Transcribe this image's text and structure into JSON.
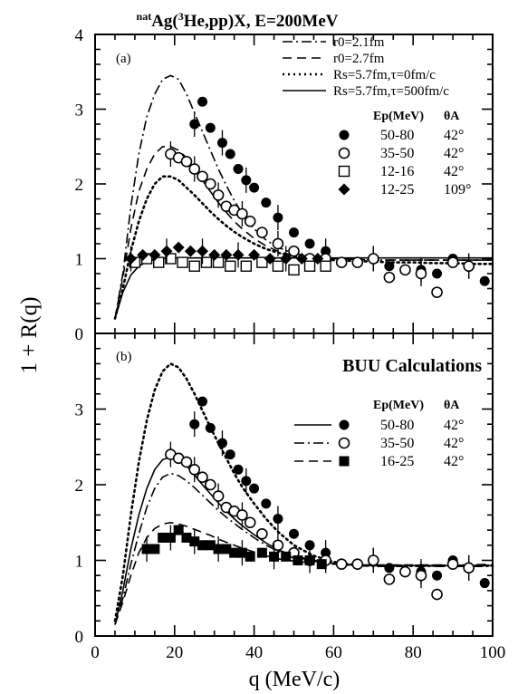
{
  "figure": {
    "title_prefix": "nat",
    "title_main": "Ag(",
    "title_super": "3",
    "title_rest": "He,pp)X, E=200MeV",
    "ylabel": "1 + R(q)",
    "xlabel": "q (MeV/c)",
    "x_ticks": [
      "0",
      "20",
      "40",
      "60",
      "80",
      "100"
    ],
    "y_ticks_a": [
      "0",
      "1",
      "2",
      "3",
      "4"
    ],
    "y_ticks_b": [
      "0",
      "1",
      "2",
      "3"
    ]
  },
  "chart_data": [
    {
      "type": "line",
      "panel": "(a)",
      "xlim": [
        0,
        100
      ],
      "ylim": [
        0,
        4
      ],
      "title": "",
      "curves": [
        {
          "name": "r0=2.1fm",
          "style": "dash-dot",
          "x": [
            5,
            7,
            9,
            11,
            13,
            15,
            17,
            19,
            21,
            23,
            25,
            27,
            29,
            31,
            33,
            35,
            37,
            40,
            43,
            46,
            50,
            55,
            60,
            65,
            70,
            75,
            80,
            85,
            90,
            95,
            100
          ],
          "y": [
            0.2,
            0.8,
            1.7,
            2.4,
            2.9,
            3.2,
            3.4,
            3.45,
            3.4,
            3.2,
            2.95,
            2.7,
            2.45,
            2.2,
            1.98,
            1.78,
            1.6,
            1.4,
            1.25,
            1.15,
            1.07,
            1.02,
            1.0,
            0.99,
            0.98,
            0.98,
            0.98,
            0.98,
            0.98,
            0.98,
            0.98
          ]
        },
        {
          "name": "r0=2.7fm",
          "style": "dashed",
          "x": [
            5,
            7,
            9,
            11,
            13,
            15,
            17,
            19,
            21,
            23,
            25,
            27,
            29,
            31,
            33,
            35,
            37,
            40,
            43,
            46,
            50,
            55,
            60,
            65,
            70,
            75,
            80,
            85,
            90,
            95,
            100
          ],
          "y": [
            0.2,
            0.75,
            1.4,
            1.9,
            2.2,
            2.4,
            2.5,
            2.5,
            2.45,
            2.35,
            2.2,
            2.05,
            1.9,
            1.75,
            1.62,
            1.5,
            1.4,
            1.27,
            1.17,
            1.1,
            1.04,
            1.01,
            1.0,
            0.99,
            0.98,
            0.98,
            0.98,
            0.98,
            0.98,
            0.98,
            0.98
          ]
        },
        {
          "name": "Rs=5.7fm,τ=0fm/c",
          "style": "dotted",
          "x": [
            5,
            7,
            9,
            11,
            13,
            15,
            17,
            19,
            21,
            23,
            25,
            27,
            29,
            31,
            33,
            35,
            37,
            40,
            43,
            46,
            50,
            55,
            60,
            65,
            70,
            75,
            80,
            85,
            90,
            95,
            100
          ],
          "y": [
            0.2,
            0.6,
            1.1,
            1.5,
            1.8,
            2.0,
            2.1,
            2.1,
            2.05,
            1.95,
            1.85,
            1.74,
            1.63,
            1.53,
            1.44,
            1.36,
            1.29,
            1.2,
            1.13,
            1.08,
            1.03,
            1.0,
            0.98,
            0.97,
            0.96,
            0.95,
            0.95,
            0.94,
            0.94,
            0.93,
            0.93
          ]
        },
        {
          "name": "Rs=5.7fm,τ=500fm/c",
          "style": "solid",
          "x": [
            5,
            7,
            9,
            11,
            13,
            15,
            17,
            19,
            21,
            23,
            25,
            27,
            29,
            31,
            33,
            35,
            37,
            40,
            43,
            46,
            50,
            55,
            60,
            65,
            70,
            75,
            80,
            85,
            90,
            95,
            100
          ],
          "y": [
            0.2,
            0.55,
            0.78,
            0.9,
            0.96,
            0.99,
            1.0,
            1.01,
            1.01,
            1.01,
            1.01,
            1.01,
            1.01,
            1.01,
            1.01,
            1.01,
            1.01,
            1.01,
            1.01,
            1.01,
            1.01,
            1.01,
            1.01,
            1.01,
            1.01,
            1.01,
            1.01,
            1.01,
            1.01,
            1.01,
            1.01
          ]
        }
      ],
      "legend_header": {
        "col1": "Ep(MeV)",
        "col2": "θA"
      },
      "series": [
        {
          "name": "50-80",
          "angle": "42°",
          "marker": "filled-circle",
          "x": [
            25,
            27,
            29,
            32,
            34,
            36,
            38,
            40,
            43,
            46,
            50,
            54,
            58,
            62,
            66,
            70,
            74,
            78,
            82,
            86,
            90,
            94,
            98
          ],
          "y": [
            2.8,
            3.1,
            2.75,
            2.55,
            2.4,
            2.2,
            2.05,
            1.95,
            1.75,
            1.55,
            1.35,
            1.2,
            1.1,
            0.95,
            0.95,
            1.0,
            0.9,
            0.85,
            0.85,
            0.8,
            1.0,
            0.9,
            0.7
          ]
        },
        {
          "name": "35-50",
          "angle": "42°",
          "marker": "open-circle",
          "x": [
            19,
            21,
            23,
            25,
            27,
            29,
            31,
            33,
            35,
            37,
            39,
            42,
            46,
            50,
            54,
            58,
            62,
            66,
            70,
            74,
            78,
            82,
            86,
            90,
            94
          ],
          "y": [
            2.4,
            2.35,
            2.3,
            2.2,
            2.1,
            2.0,
            1.85,
            1.7,
            1.65,
            1.6,
            1.5,
            1.35,
            1.2,
            1.1,
            1.0,
            1.0,
            0.95,
            0.95,
            1.0,
            0.75,
            0.85,
            0.8,
            0.55,
            0.95,
            0.9
          ]
        },
        {
          "name": "12-16",
          "angle": "42°",
          "marker": "open-square",
          "x": [
            10,
            13,
            16,
            19,
            22,
            25,
            28,
            31,
            34,
            38,
            42,
            46,
            50,
            54,
            58
          ],
          "y": [
            0.95,
            1.0,
            0.95,
            1.0,
            0.95,
            0.9,
            0.95,
            0.95,
            0.9,
            0.9,
            0.95,
            0.9,
            0.85,
            0.9,
            0.9
          ]
        },
        {
          "name": "12-25",
          "angle": "109°",
          "marker": "filled-diamond",
          "x": [
            9,
            12,
            15,
            18,
            21,
            24,
            27,
            30,
            33,
            36,
            40,
            44,
            48,
            52,
            56
          ],
          "y": [
            1.0,
            1.05,
            1.05,
            1.1,
            1.15,
            1.1,
            1.1,
            1.05,
            1.05,
            1.05,
            1.05,
            1.0,
            1.0,
            1.0,
            1.0
          ]
        }
      ]
    },
    {
      "type": "line",
      "panel": "(b)",
      "title": "BUU Calculations",
      "xlim": [
        0,
        100
      ],
      "ylim": [
        0,
        4
      ],
      "curves": [
        {
          "name": "dotted",
          "style": "dotted",
          "x": [
            5,
            7,
            9,
            11,
            13,
            15,
            17,
            19,
            21,
            23,
            25,
            27,
            29,
            31,
            33,
            35,
            37,
            40,
            43,
            46,
            50,
            55,
            60,
            65,
            70,
            75,
            80,
            85,
            90,
            95,
            100
          ],
          "y": [
            0.2,
            0.8,
            1.6,
            2.3,
            2.85,
            3.25,
            3.5,
            3.6,
            3.55,
            3.4,
            3.2,
            2.98,
            2.76,
            2.55,
            2.35,
            2.15,
            1.97,
            1.75,
            1.55,
            1.38,
            1.2,
            1.06,
            0.98,
            0.94,
            0.93,
            0.93,
            0.93,
            0.93,
            0.93,
            0.93,
            0.93
          ]
        },
        {
          "name": "solid",
          "style": "solid",
          "x": [
            5,
            7,
            9,
            11,
            13,
            15,
            17,
            19,
            21,
            23,
            25,
            27,
            29,
            31,
            33,
            35,
            37,
            40,
            43,
            46,
            50,
            55,
            60,
            65,
            70,
            75,
            80,
            85,
            90,
            95,
            100
          ],
          "y": [
            0.15,
            0.6,
            1.15,
            1.6,
            1.95,
            2.2,
            2.33,
            2.37,
            2.33,
            2.25,
            2.13,
            2.0,
            1.88,
            1.76,
            1.65,
            1.55,
            1.46,
            1.34,
            1.23,
            1.14,
            1.06,
            1.0,
            0.96,
            0.94,
            0.93,
            0.93,
            0.93,
            0.93,
            0.93,
            0.93,
            0.93
          ]
        },
        {
          "name": "dash-dot",
          "style": "dash-dot",
          "x": [
            5,
            7,
            9,
            11,
            13,
            15,
            17,
            19,
            21,
            23,
            25,
            27,
            29,
            31,
            33,
            35,
            37,
            40,
            43,
            46,
            50,
            55,
            60,
            65,
            70,
            75,
            80,
            85,
            90,
            95,
            100
          ],
          "y": [
            0.15,
            0.5,
            0.95,
            1.35,
            1.7,
            1.95,
            2.1,
            2.15,
            2.12,
            2.05,
            1.96,
            1.86,
            1.76,
            1.66,
            1.57,
            1.49,
            1.41,
            1.3,
            1.2,
            1.12,
            1.05,
            0.99,
            0.95,
            0.93,
            0.92,
            0.92,
            0.92,
            0.92,
            0.92,
            0.92,
            0.92
          ]
        },
        {
          "name": "dashed",
          "style": "dashed",
          "x": [
            5,
            7,
            9,
            11,
            13,
            15,
            17,
            19,
            21,
            23,
            25,
            27,
            29,
            31,
            33,
            35,
            37,
            40,
            43,
            46,
            50,
            55,
            60,
            65,
            70,
            75,
            80,
            85,
            90,
            95,
            100
          ],
          "y": [
            0.15,
            0.45,
            0.8,
            1.1,
            1.3,
            1.42,
            1.48,
            1.5,
            1.48,
            1.45,
            1.41,
            1.37,
            1.33,
            1.28,
            1.24,
            1.2,
            1.16,
            1.11,
            1.06,
            1.02,
            0.99,
            0.96,
            0.95,
            0.94,
            0.94,
            0.94,
            0.94,
            0.94,
            0.94,
            0.94,
            0.95
          ]
        }
      ],
      "legend_header": {
        "col1": "Ep(MeV)",
        "col2": "θA"
      },
      "series": [
        {
          "name": "50-80",
          "angle": "42°",
          "marker": "filled-circle",
          "x": [
            25,
            27,
            29,
            32,
            34,
            36,
            38,
            40,
            43,
            46,
            50,
            54,
            58,
            62,
            66,
            70,
            74,
            78,
            82,
            86,
            90,
            94,
            98
          ],
          "y": [
            2.8,
            3.1,
            2.75,
            2.55,
            2.4,
            2.2,
            2.05,
            1.95,
            1.75,
            1.55,
            1.35,
            1.2,
            1.1,
            0.95,
            0.95,
            1.0,
            0.9,
            0.85,
            0.85,
            0.8,
            1.0,
            0.9,
            0.7
          ]
        },
        {
          "name": "35-50",
          "angle": "42°",
          "marker": "open-circle",
          "x": [
            19,
            21,
            23,
            25,
            27,
            29,
            31,
            33,
            35,
            37,
            39,
            42,
            46,
            50,
            54,
            58,
            62,
            66,
            70,
            74,
            78,
            82,
            86,
            90,
            94
          ],
          "y": [
            2.4,
            2.35,
            2.3,
            2.2,
            2.1,
            2.0,
            1.85,
            1.7,
            1.65,
            1.6,
            1.5,
            1.35,
            1.2,
            1.1,
            1.0,
            1.0,
            0.95,
            0.95,
            1.0,
            0.75,
            0.85,
            0.8,
            0.55,
            0.95,
            0.9
          ]
        },
        {
          "name": "16-25",
          "angle": "42°",
          "marker": "filled-square",
          "x": [
            13,
            15,
            17,
            19,
            21,
            23,
            25,
            27,
            29,
            31,
            33,
            35,
            37,
            39,
            42,
            45,
            48,
            51,
            54,
            57
          ],
          "y": [
            1.15,
            1.15,
            1.3,
            1.3,
            1.4,
            1.3,
            1.25,
            1.2,
            1.2,
            1.15,
            1.15,
            1.1,
            1.1,
            1.05,
            1.1,
            1.05,
            1.05,
            1.0,
            1.0,
            0.95
          ]
        }
      ]
    }
  ]
}
